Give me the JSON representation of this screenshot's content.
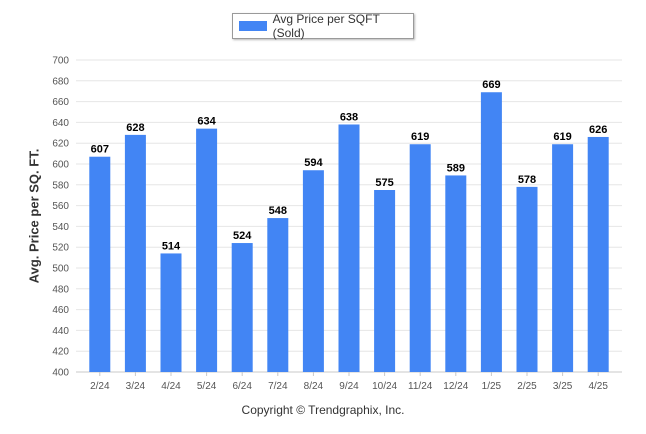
{
  "legend": {
    "label": "Avg Price per SQFT (Sold)"
  },
  "footer": {
    "text": "Copyright © Trendgraphix, Inc."
  },
  "chart_data": {
    "type": "bar",
    "title": "",
    "xlabel": "",
    "ylabel": "Avg. Price per SQ. FT.",
    "categories": [
      "2/24",
      "3/24",
      "4/24",
      "5/24",
      "6/24",
      "7/24",
      "8/24",
      "9/24",
      "10/24",
      "11/24",
      "12/24",
      "1/25",
      "2/25",
      "3/25",
      "4/25"
    ],
    "series": [
      {
        "name": "Avg Price per SQFT (Sold)",
        "values": [
          607,
          628,
          514,
          634,
          524,
          548,
          594,
          638,
          575,
          619,
          589,
          669,
          578,
          619,
          626
        ]
      }
    ],
    "ylim": [
      400,
      700
    ],
    "yticks": [
      400,
      420,
      440,
      460,
      480,
      500,
      520,
      540,
      560,
      580,
      600,
      620,
      640,
      660,
      680,
      700
    ],
    "grid": true,
    "legend_position": "top-center",
    "data_labels": true,
    "colors": {
      "bar": "#4285f4",
      "grid": "#e6e6e6",
      "axis": "#c8c8c8",
      "tick_text": "#555555",
      "label_text": "#000000"
    }
  }
}
